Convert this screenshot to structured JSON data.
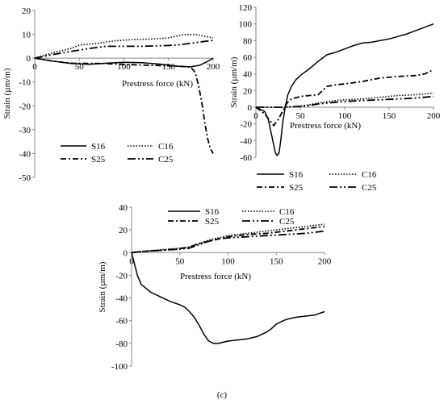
{
  "figure": {
    "caption": "(c)"
  },
  "chart_data": [
    {
      "type": "line",
      "title": "",
      "xlabel": "Prestress force (kN)",
      "ylabel": "Strain (µm/m)",
      "xlim": [
        0,
        200
      ],
      "ylim": [
        -50,
        20
      ],
      "xticks": [
        0,
        50,
        100,
        150,
        200
      ],
      "yticks": [
        20,
        10,
        0,
        -10,
        -20,
        -30,
        -40,
        -50
      ],
      "grid": false,
      "legend": "bottom",
      "series": [
        {
          "name": "S16",
          "style": "solid",
          "points": [
            [
              0,
              0
            ],
            [
              20,
              -1.2
            ],
            [
              40,
              -2.2
            ],
            [
              60,
              -2.6
            ],
            [
              80,
              -2.1
            ],
            [
              100,
              -1.7
            ],
            [
              120,
              -1.9
            ],
            [
              140,
              -2.5
            ],
            [
              160,
              -3.4
            ],
            [
              175,
              -3.6
            ],
            [
              185,
              -3
            ],
            [
              193,
              -1.5
            ],
            [
              200,
              0
            ]
          ]
        },
        {
          "name": "C16",
          "style": "dotted",
          "points": [
            [
              0,
              0
            ],
            [
              20,
              2.2
            ],
            [
              40,
              4
            ],
            [
              50,
              5.5
            ],
            [
              70,
              6.2
            ],
            [
              90,
              7.3
            ],
            [
              110,
              7.8
            ],
            [
              130,
              8
            ],
            [
              150,
              8.5
            ],
            [
              165,
              9.8
            ],
            [
              180,
              10
            ],
            [
              200,
              8.5
            ]
          ]
        },
        {
          "name": "S25",
          "style": "dashdot",
          "points": [
            [
              0,
              0
            ],
            [
              20,
              -1.2
            ],
            [
              40,
              -2.1
            ],
            [
              60,
              -2.2
            ],
            [
              80,
              -2.3
            ],
            [
              100,
              -2.6
            ],
            [
              120,
              -2.9
            ],
            [
              140,
              -3.1
            ],
            [
              160,
              -3.3
            ],
            [
              175,
              -3.8
            ],
            [
              180,
              -6
            ],
            [
              184,
              -12
            ],
            [
              188,
              -20
            ],
            [
              191,
              -28
            ],
            [
              194,
              -34
            ],
            [
              197,
              -38
            ],
            [
              200,
              -40
            ]
          ]
        },
        {
          "name": "C25",
          "style": "dashdotdot",
          "points": [
            [
              0,
              0
            ],
            [
              20,
              1.5
            ],
            [
              40,
              2.8
            ],
            [
              60,
              4
            ],
            [
              80,
              5
            ],
            [
              100,
              5
            ],
            [
              120,
              5
            ],
            [
              140,
              5.2
            ],
            [
              160,
              5.5
            ],
            [
              170,
              6
            ],
            [
              180,
              6.5
            ],
            [
              190,
              7
            ],
            [
              200,
              7.5
            ]
          ]
        }
      ]
    },
    {
      "type": "line",
      "title": "",
      "xlabel": "Prestress force (kN)",
      "ylabel": "Strain (µm/m)",
      "xlim": [
        0,
        200
      ],
      "ylim": [
        -60,
        120
      ],
      "xticks": [
        0,
        50,
        100,
        150,
        200
      ],
      "yticks": [
        120,
        100,
        80,
        60,
        40,
        20,
        0,
        -20,
        -40,
        -60
      ],
      "grid": false,
      "legend": "bottom",
      "series": [
        {
          "name": "S16",
          "style": "solid",
          "points": [
            [
              0,
              0
            ],
            [
              10,
              -5
            ],
            [
              14,
              -15
            ],
            [
              17,
              -30
            ],
            [
              20,
              -45
            ],
            [
              22,
              -55
            ],
            [
              24,
              -58
            ],
            [
              26,
              -55
            ],
            [
              28,
              -40
            ],
            [
              30,
              -20
            ],
            [
              33,
              0
            ],
            [
              36,
              15
            ],
            [
              40,
              25
            ],
            [
              45,
              33
            ],
            [
              50,
              38
            ],
            [
              60,
              46
            ],
            [
              70,
              55
            ],
            [
              80,
              63
            ],
            [
              90,
              66
            ],
            [
              100,
              70
            ],
            [
              110,
              74
            ],
            [
              120,
              77
            ],
            [
              130,
              78
            ],
            [
              140,
              80
            ],
            [
              150,
              82
            ],
            [
              160,
              85
            ],
            [
              170,
              88
            ],
            [
              180,
              92
            ],
            [
              190,
              96
            ],
            [
              200,
              100
            ]
          ]
        },
        {
          "name": "C16",
          "style": "dotted",
          "points": [
            [
              0,
              0
            ],
            [
              30,
              0
            ],
            [
              40,
              0.5
            ],
            [
              50,
              1.5
            ],
            [
              60,
              3
            ],
            [
              70,
              5
            ],
            [
              80,
              6.5
            ],
            [
              90,
              8
            ],
            [
              100,
              9
            ],
            [
              120,
              10
            ],
            [
              140,
              12
            ],
            [
              160,
              14
            ],
            [
              180,
              15
            ],
            [
              200,
              17
            ]
          ]
        },
        {
          "name": "S25",
          "style": "dashdot",
          "points": [
            [
              0,
              0
            ],
            [
              10,
              -8
            ],
            [
              15,
              -15
            ],
            [
              20,
              -22
            ],
            [
              25,
              -15
            ],
            [
              30,
              -5
            ],
            [
              35,
              5
            ],
            [
              40,
              10
            ],
            [
              50,
              13
            ],
            [
              60,
              14
            ],
            [
              70,
              15
            ],
            [
              80,
              25
            ],
            [
              90,
              27
            ],
            [
              100,
              28
            ],
            [
              120,
              31
            ],
            [
              140,
              35
            ],
            [
              160,
              37
            ],
            [
              180,
              38
            ],
            [
              190,
              40
            ],
            [
              200,
              45
            ]
          ]
        },
        {
          "name": "C25",
          "style": "dashdotdot",
          "points": [
            [
              0,
              0
            ],
            [
              30,
              0
            ],
            [
              40,
              0.5
            ],
            [
              50,
              1
            ],
            [
              60,
              2
            ],
            [
              70,
              4
            ],
            [
              80,
              5
            ],
            [
              90,
              6
            ],
            [
              100,
              7
            ],
            [
              120,
              8
            ],
            [
              140,
              9
            ],
            [
              160,
              10
            ],
            [
              180,
              11
            ],
            [
              200,
              13
            ]
          ]
        }
      ]
    },
    {
      "type": "line",
      "title": "",
      "xlabel": "Prestress force (kN)",
      "ylabel": "Strain (µm/m)",
      "xlim": [
        0,
        200
      ],
      "ylim": [
        -100,
        40
      ],
      "xticks": [
        0,
        50,
        100,
        150,
        200
      ],
      "yticks": [
        40,
        20,
        0,
        -20,
        -40,
        -60,
        -80,
        -100
      ],
      "grid": false,
      "legend": "top",
      "series": [
        {
          "name": "S16",
          "style": "solid",
          "points": [
            [
              0,
              0
            ],
            [
              3,
              -10
            ],
            [
              6,
              -20
            ],
            [
              10,
              -28
            ],
            [
              20,
              -35
            ],
            [
              30,
              -39
            ],
            [
              40,
              -43
            ],
            [
              50,
              -46
            ],
            [
              55,
              -48
            ],
            [
              60,
              -52
            ],
            [
              65,
              -57
            ],
            [
              70,
              -64
            ],
            [
              75,
              -72
            ],
            [
              80,
              -78
            ],
            [
              85,
              -80
            ],
            [
              90,
              -80
            ],
            [
              95,
              -79
            ],
            [
              100,
              -78
            ],
            [
              110,
              -77
            ],
            [
              120,
              -76
            ],
            [
              130,
              -74
            ],
            [
              140,
              -70
            ],
            [
              145,
              -67
            ],
            [
              150,
              -63
            ],
            [
              155,
              -61
            ],
            [
              160,
              -59
            ],
            [
              170,
              -57
            ],
            [
              180,
              -56
            ],
            [
              190,
              -55
            ],
            [
              200,
              -52
            ]
          ]
        },
        {
          "name": "C16",
          "style": "dotted",
          "points": [
            [
              0,
              0
            ],
            [
              10,
              1
            ],
            [
              30,
              2.5
            ],
            [
              50,
              4
            ],
            [
              60,
              5
            ],
            [
              70,
              8
            ],
            [
              80,
              11
            ],
            [
              90,
              13
            ],
            [
              100,
              15
            ],
            [
              120,
              17
            ],
            [
              140,
              19
            ],
            [
              160,
              21
            ],
            [
              180,
              23
            ],
            [
              200,
              25
            ]
          ]
        },
        {
          "name": "S25",
          "style": "dashdot",
          "points": [
            [
              0,
              0
            ],
            [
              10,
              1
            ],
            [
              30,
              2
            ],
            [
              50,
              3.5
            ],
            [
              60,
              5
            ],
            [
              70,
              8
            ],
            [
              80,
              10
            ],
            [
              90,
              12
            ],
            [
              100,
              14
            ],
            [
              120,
              16
            ],
            [
              140,
              17
            ],
            [
              160,
              19
            ],
            [
              180,
              21
            ],
            [
              200,
              23
            ]
          ]
        },
        {
          "name": "C25",
          "style": "dashdotdot",
          "points": [
            [
              0,
              0
            ],
            [
              10,
              1
            ],
            [
              30,
              2
            ],
            [
              50,
              3
            ],
            [
              60,
              4
            ],
            [
              70,
              7
            ],
            [
              80,
              10
            ],
            [
              90,
              12
            ],
            [
              100,
              13
            ],
            [
              120,
              14
            ],
            [
              140,
              15
            ],
            [
              160,
              16
            ],
            [
              180,
              17
            ],
            [
              200,
              19
            ]
          ]
        }
      ]
    }
  ]
}
